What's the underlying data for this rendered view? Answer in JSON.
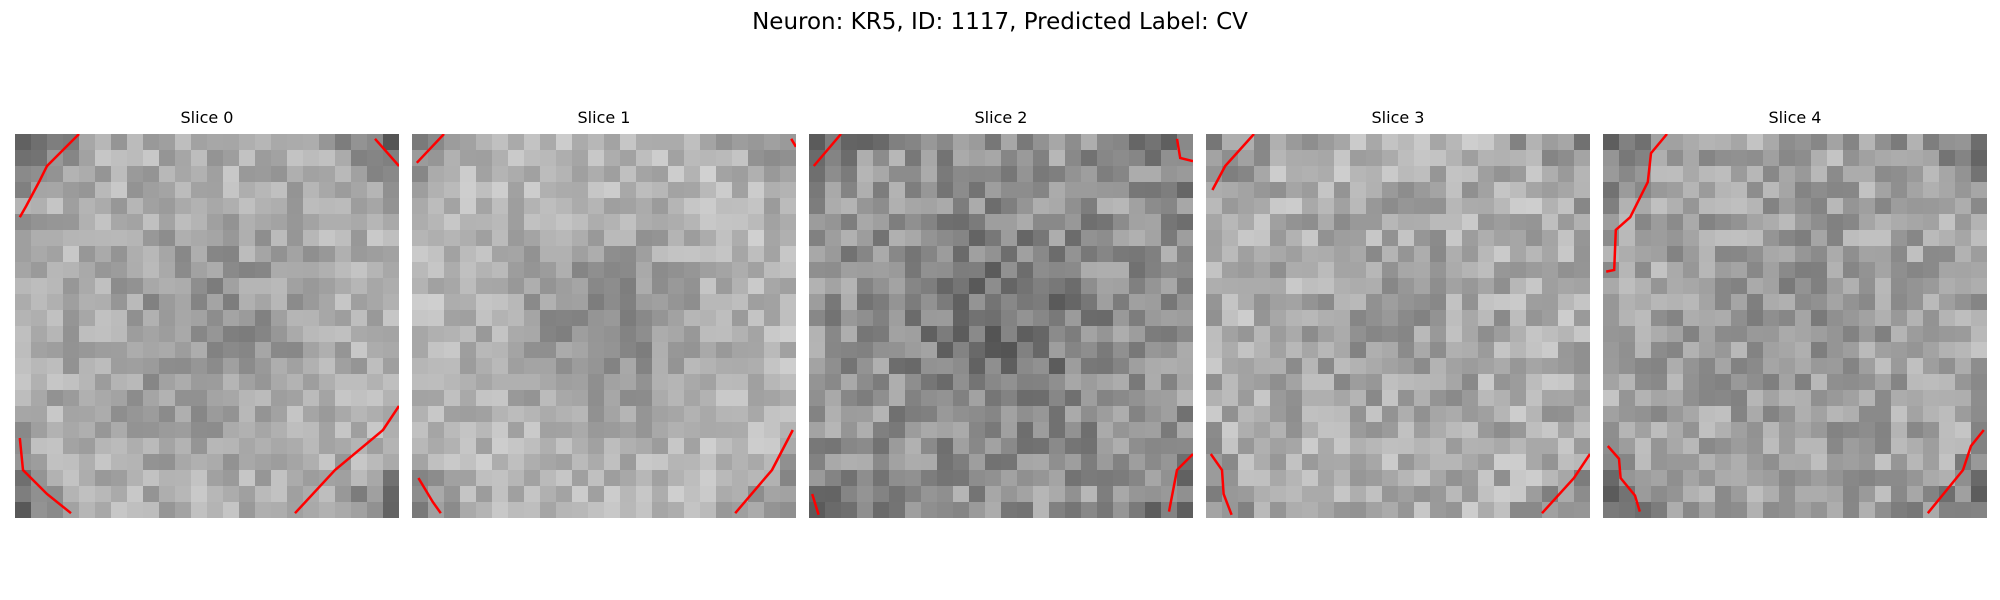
{
  "figure": {
    "title": "Neuron: KR5, ID: 1117, Predicted Label: CV"
  },
  "panels": [
    {
      "title": "Slice 0"
    },
    {
      "title": "Slice 1"
    },
    {
      "title": "Slice 2"
    },
    {
      "title": "Slice 3"
    },
    {
      "title": "Slice 4"
    }
  ],
  "colors": {
    "contour": "#ff0000",
    "colormap": "gray"
  }
}
